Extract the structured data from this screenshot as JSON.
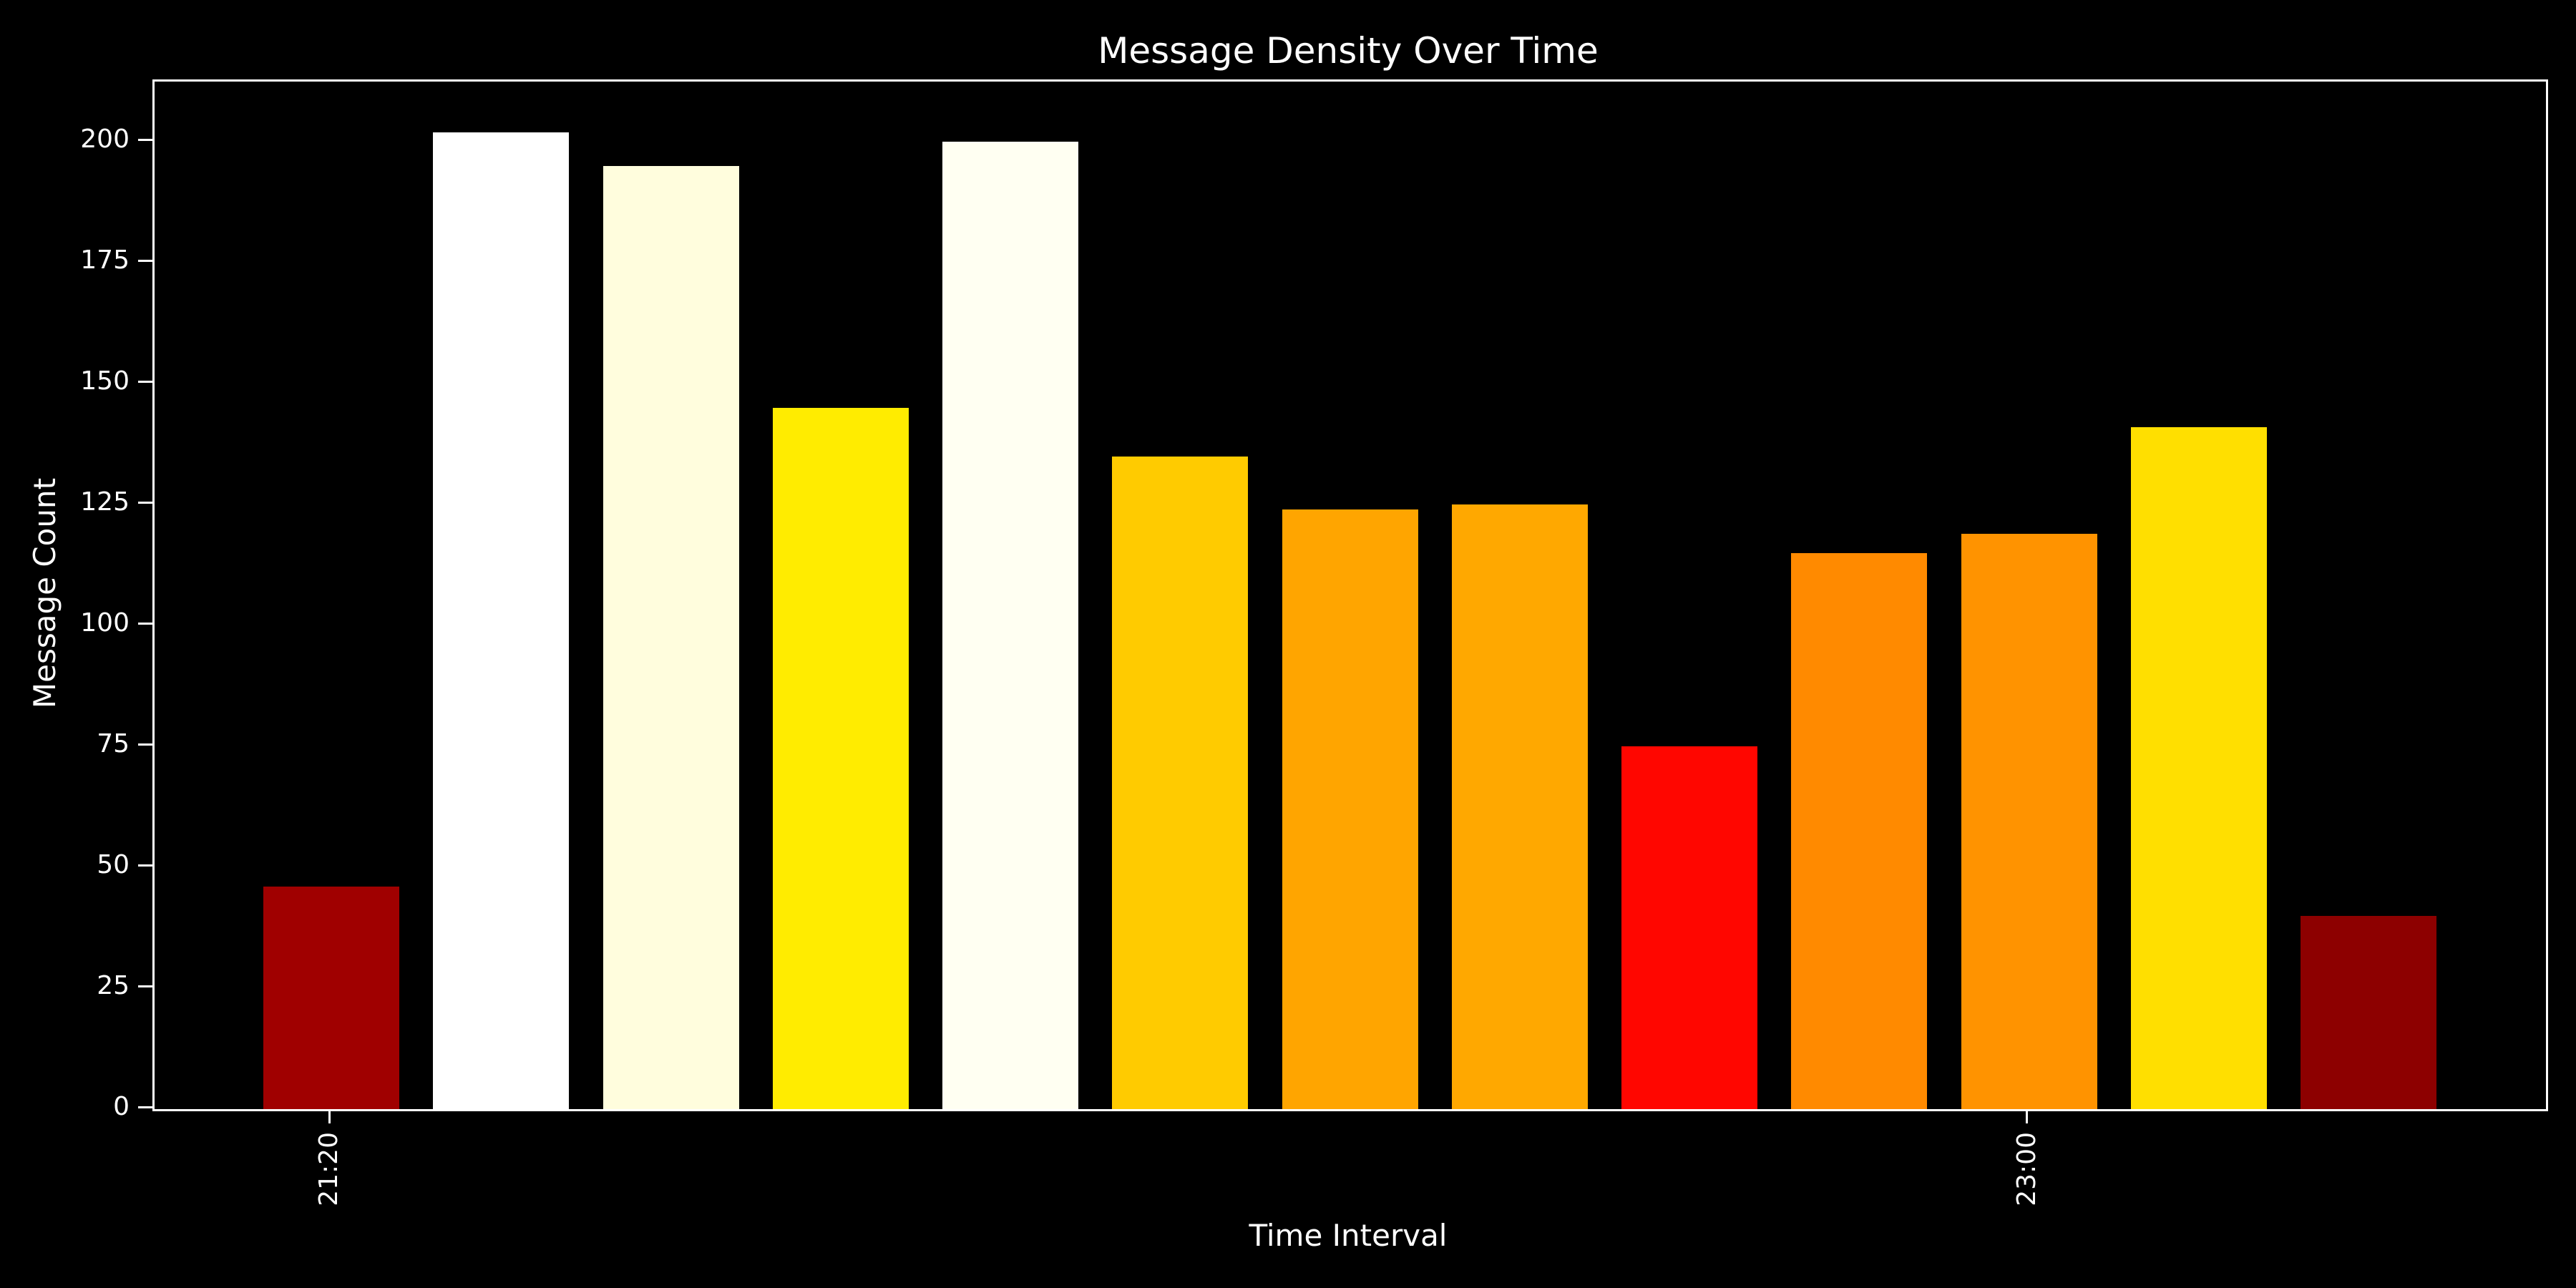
{
  "chart_data": {
    "type": "bar",
    "title": "Message Density Over Time",
    "xlabel": "Time Interval",
    "ylabel": "Message Count",
    "values": [
      46,
      202,
      195,
      145,
      200,
      135,
      124,
      125,
      75,
      115,
      119,
      141,
      40
    ],
    "bar_colors": [
      "#a00000",
      "#ffffff",
      "#fffddd",
      "#ffec00",
      "#fffff2",
      "#ffcb00",
      "#ffa500",
      "#ffa800",
      "#ff0600",
      "#ff8a00",
      "#ff9300",
      "#ffdf00",
      "#8d0000"
    ],
    "x_ticks": [
      {
        "bar_index": 0,
        "label": "21:20"
      },
      {
        "bar_index": 10,
        "label": "23:00"
      }
    ],
    "y_ticks": [
      0,
      25,
      50,
      75,
      100,
      125,
      150,
      175,
      200
    ],
    "ylim": [
      0,
      212.5
    ],
    "grid": false,
    "legend": null,
    "colormap": "hot",
    "background_color": "#000000",
    "text_color": "#ffffff",
    "tick_label_rotation_deg": 90
  }
}
